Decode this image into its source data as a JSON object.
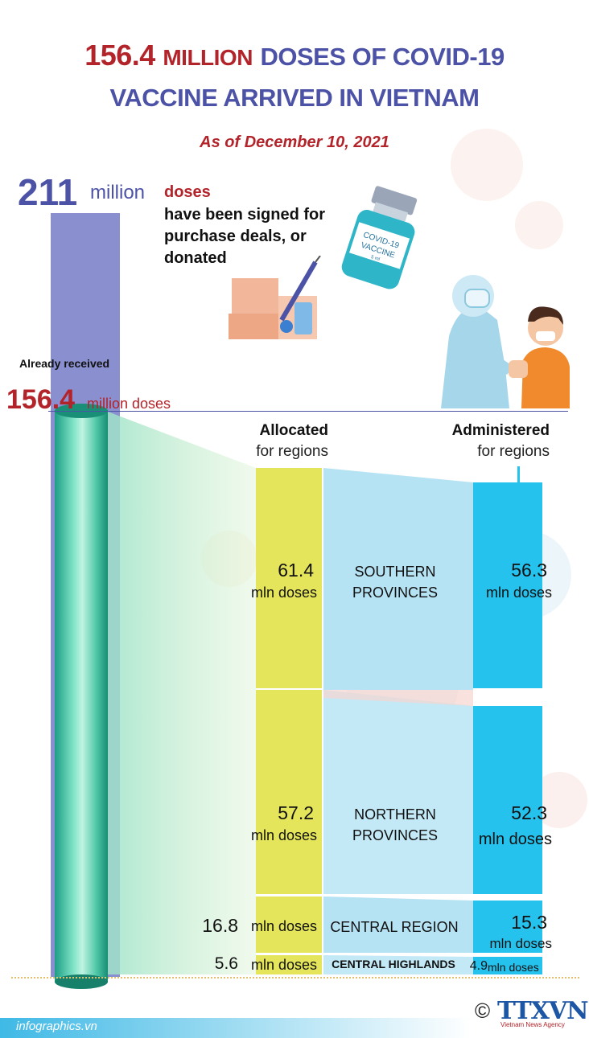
{
  "title": {
    "number": "156.4",
    "million": "MILLION",
    "rest": "DOSES OF COVID-19",
    "line2": "VACCINE ARRIVED IN VIETNAM"
  },
  "subtitle": "As of December 10, 2021",
  "signed": {
    "number": "211",
    "unit": "million",
    "doses": "doses",
    "text": "have been signed for purchase deals, or donated"
  },
  "received": {
    "label": "Already received",
    "number": "156.4",
    "unit": "million doses"
  },
  "vial": {
    "label1": "COVID-19",
    "label2": "VACCINE",
    "label3": "5 ml"
  },
  "headers": {
    "allocated": "Allocated",
    "allocated_sub": "for regions",
    "administered": "Administered",
    "administered_sub": "for regions"
  },
  "regions": [
    {
      "name": "SOUTHERN PROVINCES",
      "allocated": "61.4",
      "administered": "56.3",
      "unit": "mln doses"
    },
    {
      "name": "NORTHERN PROVINCES",
      "allocated": "57.2",
      "administered": "52.3",
      "unit": "mln doses"
    },
    {
      "name": "CENTRAL REGION",
      "allocated": "16.8",
      "administered": "15.3",
      "unit": "mln doses"
    },
    {
      "name": "CENTRAL HIGHLANDS",
      "allocated": "5.6",
      "administered": "4.9",
      "unit": "mln doses"
    }
  ],
  "footer": {
    "site": "infographics.vn",
    "copyright": "©",
    "logo": "TTXVN",
    "agency": "Vietnam News Agency"
  },
  "colors": {
    "title_red": "#b3232a",
    "title_blue": "#4c52a6",
    "allocated_bar": "#e4e55a",
    "administered_bar": "#25c2ee",
    "region_band": "#b6e3f4",
    "signed_bar": "#8a8fd0",
    "received_cylinder": "#1c9d84"
  }
}
